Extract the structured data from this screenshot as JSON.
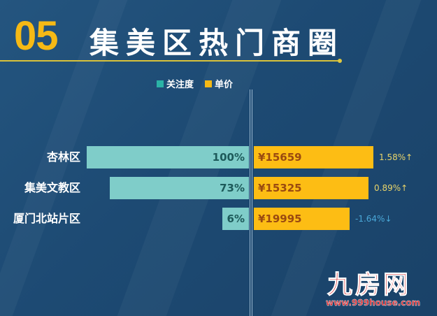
{
  "header": {
    "number": "05",
    "title": "集美区热门商圈"
  },
  "colors": {
    "attention": "#7fcdc9",
    "price": "#fdbd14",
    "accent": "#f5b915",
    "up": "#e8d46a",
    "down": "#4aa8d8",
    "background": "#1d4a73"
  },
  "chart_data": {
    "type": "bar",
    "orientation": "horizontal-paired",
    "categories": [
      "杏林区",
      "集美文教区",
      "厦门北站片区"
    ],
    "legend": [
      "关注度",
      "单价"
    ],
    "legend_placement": "top-center",
    "series": [
      {
        "name": "关注度",
        "values": [
          100,
          73,
          6
        ],
        "labels": [
          "100%",
          "73%",
          "6%"
        ]
      },
      {
        "name": "单价",
        "values": [
          15659,
          15325,
          19995
        ],
        "labels": [
          "¥15659",
          "¥15325",
          "¥19995"
        ]
      }
    ],
    "changes": [
      {
        "label": "1.58%↑",
        "value": 1.58,
        "direction": "up"
      },
      {
        "label": "0.89%↑",
        "value": 0.89,
        "direction": "up"
      },
      {
        "label": "-1.64%↓",
        "value": -1.64,
        "direction": "down"
      }
    ]
  },
  "watermark": {
    "logo": "九房网",
    "url": "www.999house.com"
  }
}
